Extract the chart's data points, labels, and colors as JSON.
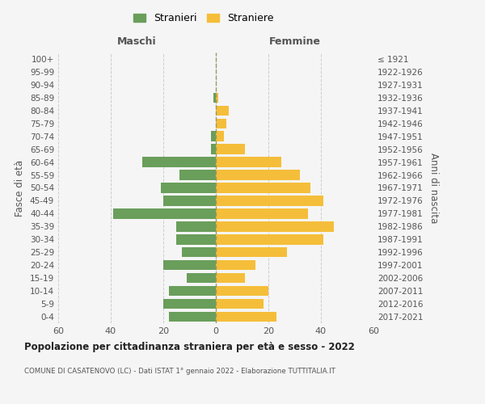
{
  "age_groups": [
    "0-4",
    "5-9",
    "10-14",
    "15-19",
    "20-24",
    "25-29",
    "30-34",
    "35-39",
    "40-44",
    "45-49",
    "50-54",
    "55-59",
    "60-64",
    "65-69",
    "70-74",
    "75-79",
    "80-84",
    "85-89",
    "90-94",
    "95-99",
    "100+"
  ],
  "birth_years": [
    "2017-2021",
    "2012-2016",
    "2007-2011",
    "2002-2006",
    "1997-2001",
    "1992-1996",
    "1987-1991",
    "1982-1986",
    "1977-1981",
    "1972-1976",
    "1967-1971",
    "1962-1966",
    "1957-1961",
    "1952-1956",
    "1947-1951",
    "1942-1946",
    "1937-1941",
    "1932-1936",
    "1927-1931",
    "1922-1926",
    "≤ 1921"
  ],
  "maschi": [
    18,
    20,
    18,
    11,
    20,
    13,
    15,
    15,
    39,
    20,
    21,
    14,
    28,
    2,
    2,
    0,
    0,
    1,
    0,
    0,
    0
  ],
  "femmine": [
    23,
    18,
    20,
    11,
    15,
    27,
    41,
    45,
    35,
    41,
    36,
    32,
    25,
    11,
    3,
    4,
    5,
    1,
    0,
    0,
    0
  ],
  "maschi_color": "#6a9e5b",
  "femmine_color": "#f5be3a",
  "background_color": "#f5f5f5",
  "title": "Popolazione per cittadinanza straniera per età e sesso - 2022",
  "subtitle": "COMUNE DI CASATENOVO (LC) - Dati ISTAT 1° gennaio 2022 - Elaborazione TUTTITALIA.IT",
  "xlabel_left": "Maschi",
  "xlabel_right": "Femmine",
  "ylabel_left": "Fasce di età",
  "ylabel_right": "Anni di nascita",
  "legend_maschi": "Stranieri",
  "legend_femmine": "Straniere",
  "xlim": 60,
  "grid_color": "#cccccc",
  "dashed_line_color": "#999966"
}
